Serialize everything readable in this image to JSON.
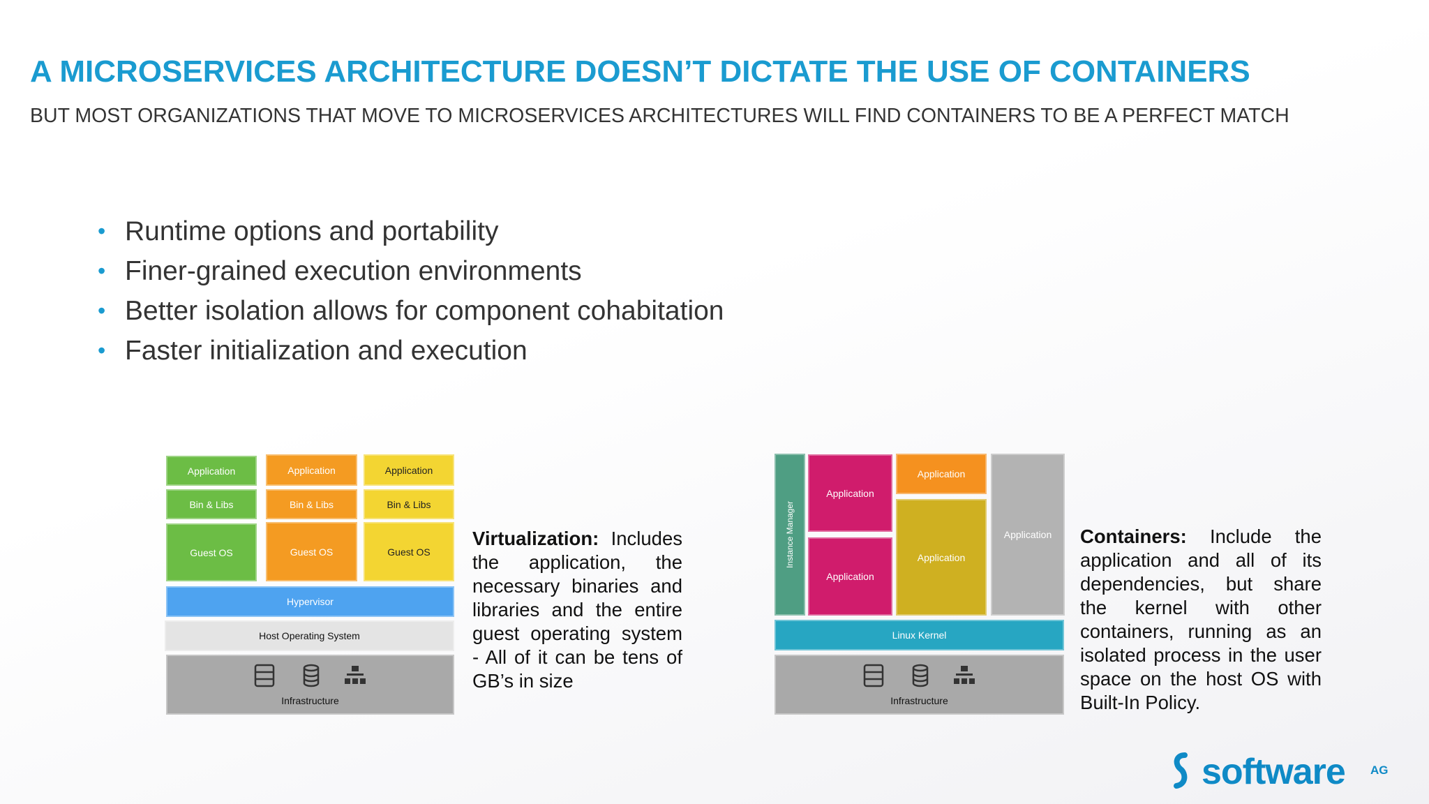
{
  "header": {
    "title": "A MICROSERVICES ARCHITECTURE DOESN’T DICTATE THE USE OF CONTAINERS",
    "subtitle": "BUT MOST ORGANIZATIONS THAT MOVE TO MICROSERVICES ARCHITECTURES WILL FIND CONTAINERS TO BE A PERFECT MATCH"
  },
  "bullets": [
    "Runtime options and portability",
    "Finer-grained execution environments",
    "Better isolation allows for component cohabitation",
    "Faster initialization and execution"
  ],
  "virtualization": {
    "blocks": [
      "Application",
      "Bin & Libs",
      "Guest OS",
      "Hypervisor",
      "Host Operating System",
      "Infrastructure"
    ],
    "caption": {
      "lead": "Virtualization:",
      "body": "Includes the application, the necessary binaries and libraries and the entire guest operating system - All of it can be tens of GB’s in size"
    }
  },
  "containers": {
    "blocks": [
      "Instance Manager",
      "Application",
      "Linux Kernel",
      "Infrastructure"
    ],
    "caption": {
      "lead": "Containers:",
      "body": "Include the application and all of its dependencies, but share the kernel with other containers, running as an isolated process in the user space on the host OS with Built-In Policy."
    }
  },
  "logo": {
    "name": "software",
    "suffix": "AG"
  }
}
